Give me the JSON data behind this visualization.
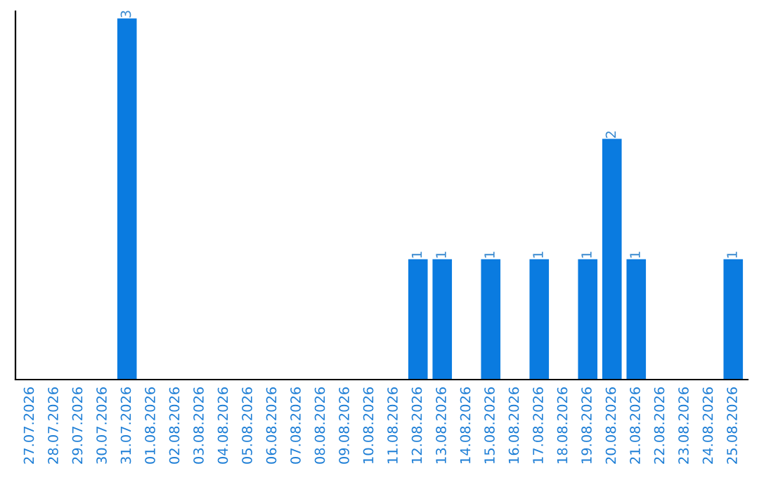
{
  "chart_data": {
    "type": "bar",
    "categories": [
      "27.07.2026",
      "28.07.2026",
      "29.07.2026",
      "30.07.2026",
      "31.07.2026",
      "01.08.2026",
      "02.08.2026",
      "03.08.2026",
      "04.08.2026",
      "05.08.2026",
      "06.08.2026",
      "07.08.2026",
      "08.08.2026",
      "09.08.2026",
      "10.08.2026",
      "11.08.2026",
      "12.08.2026",
      "13.08.2026",
      "14.08.2026",
      "15.08.2026",
      "16.08.2026",
      "17.08.2026",
      "18.08.2026",
      "19.08.2026",
      "20.08.2026",
      "21.08.2026",
      "22.08.2026",
      "23.08.2026",
      "24.08.2026",
      "25.08.2026"
    ],
    "values": [
      0,
      0,
      0,
      0,
      3,
      0,
      0,
      0,
      0,
      0,
      0,
      0,
      0,
      0,
      0,
      0,
      1,
      1,
      0,
      1,
      0,
      1,
      0,
      1,
      2,
      1,
      0,
      0,
      0,
      1
    ],
    "value_labels": [
      null,
      null,
      null,
      null,
      "3",
      null,
      null,
      null,
      null,
      null,
      null,
      null,
      null,
      null,
      null,
      null,
      "1",
      "1",
      null,
      "1",
      null,
      "1",
      null,
      "1",
      "2",
      "1",
      null,
      null,
      null,
      "1"
    ],
    "color": "#0a7be0",
    "grid": false,
    "legend": false,
    "tick_labels": "x"
  }
}
